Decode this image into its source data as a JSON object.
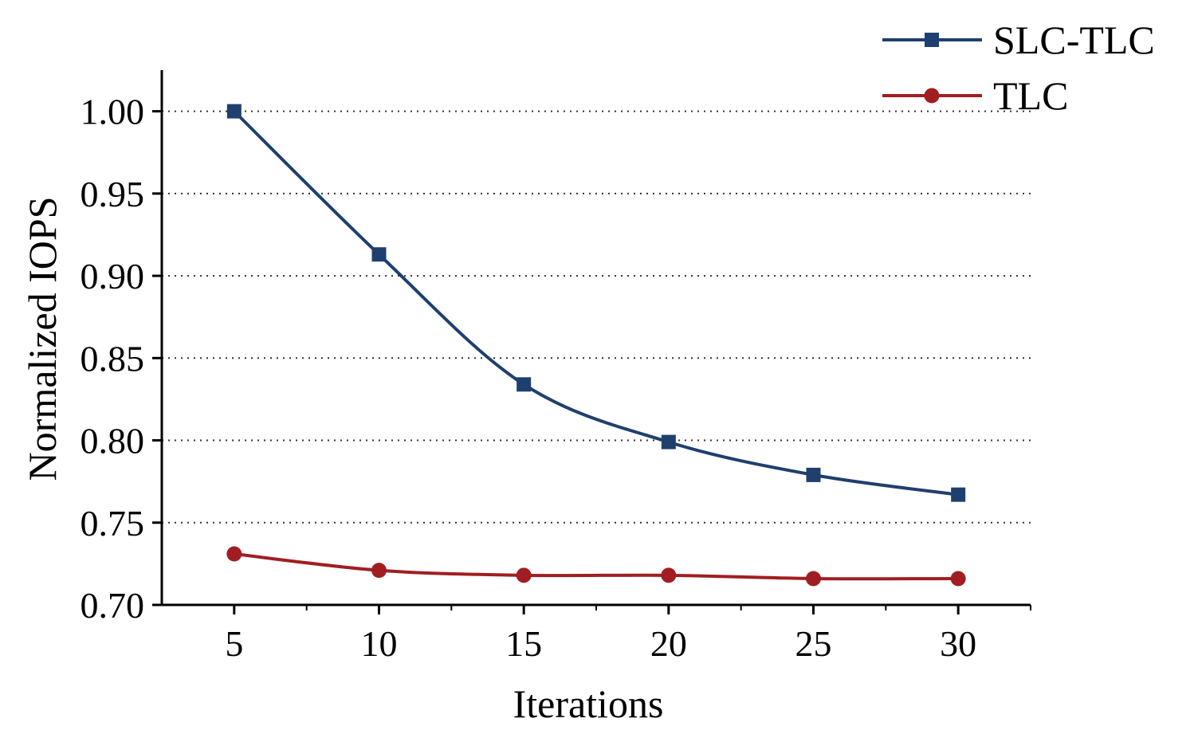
{
  "chart_data": {
    "type": "line",
    "title": "",
    "xlabel": "Iterations",
    "ylabel": "Normalized IOPS",
    "x": [
      5,
      10,
      15,
      20,
      25,
      30
    ],
    "xticks": [
      "5",
      "10",
      "15",
      "20",
      "25",
      "30"
    ],
    "yticks": [
      "0.70",
      "0.75",
      "0.80",
      "0.85",
      "0.90",
      "0.95",
      "1.00"
    ],
    "xlim": [
      2.5,
      32.5
    ],
    "ylim": [
      0.7,
      1.025
    ],
    "grid": "horizontal dotted",
    "legend_position": "top-right",
    "series": [
      {
        "name": "SLC-TLC",
        "values": [
          1.0,
          0.913,
          0.834,
          0.799,
          0.779,
          0.767
        ],
        "color": "#1f3f6e",
        "marker": "square"
      },
      {
        "name": "TLC",
        "values": [
          0.731,
          0.721,
          0.718,
          0.718,
          0.716,
          0.716
        ],
        "color": "#a01e22",
        "marker": "circle"
      }
    ]
  }
}
